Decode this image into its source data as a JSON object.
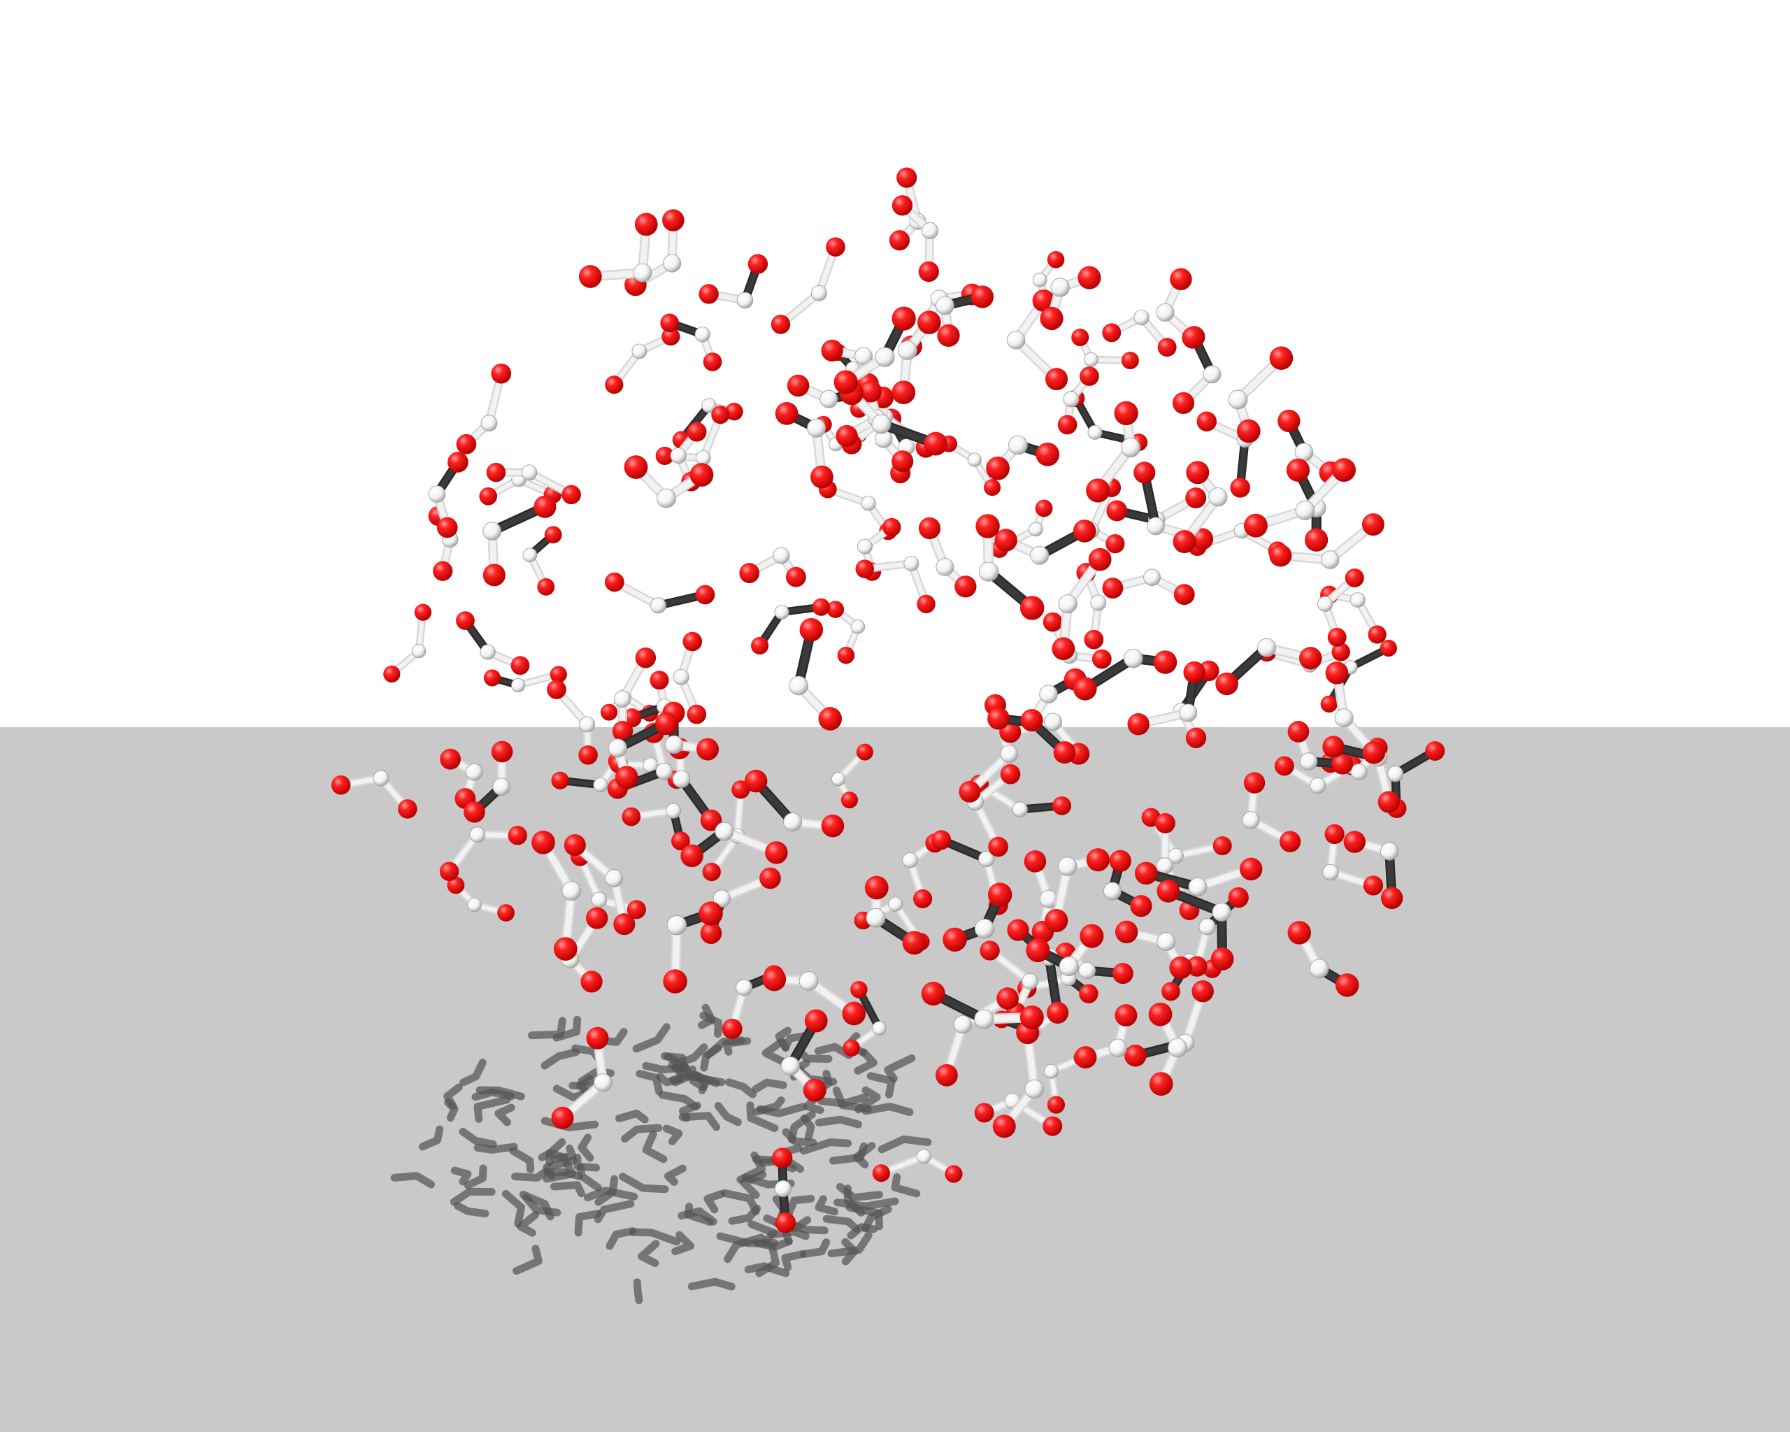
{
  "scene": {
    "type": "ball-and-stick molecular render",
    "molecule_kind": "triatomic bent molecules (O-H-O style, red end atoms, white center atom)",
    "molecule_count_approx": 160,
    "colors": {
      "background": "#ffffff",
      "floor": "#c9c9c9",
      "end_atom": "#ee1111",
      "end_atom_highlight": "#ff8a8a",
      "center_atom": "#ffffff",
      "center_atom_shade": "#b8b8b8",
      "bond_light": "#f2f2f2",
      "bond_dark": "#2a2a2a",
      "shadow": "#555555"
    },
    "atom_roles": [
      "end-atom",
      "center-atom",
      "end-atom"
    ]
  }
}
